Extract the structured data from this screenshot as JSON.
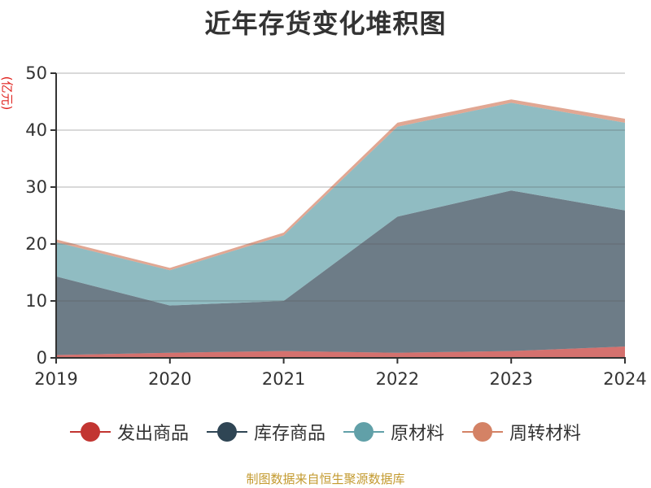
{
  "title": "近年存货变化堆积图",
  "y_unit": "(亿元)",
  "footer": "制图数据来自恒生聚源数据库",
  "colors": {
    "发出商品": "#c23531",
    "库存商品": "#2f4554",
    "原材料": "#61a0a8",
    "周转材料": "#d48265"
  },
  "legend": [
    {
      "label": "发出商品",
      "color": "#c23531"
    },
    {
      "label": "库存商品",
      "color": "#2f4554"
    },
    {
      "label": "原材料",
      "color": "#61a0a8"
    },
    {
      "label": "周转材料",
      "color": "#d48265"
    }
  ],
  "chart_data": {
    "type": "area",
    "stacked": true,
    "title": "近年存货变化堆积图",
    "xlabel": "",
    "ylabel": "(亿元)",
    "categories": [
      "2019",
      "2020",
      "2021",
      "2022",
      "2023",
      "2024"
    ],
    "ylim": [
      0,
      50
    ],
    "yticks": [
      0,
      10,
      20,
      30,
      40,
      50
    ],
    "grid": true,
    "legend_position": "bottom",
    "series": [
      {
        "name": "发出商品",
        "color": "#c23531",
        "values": [
          0.5,
          0.9,
          1.2,
          0.9,
          1.2,
          2.0
        ]
      },
      {
        "name": "库存商品",
        "color": "#2f4554",
        "values": [
          13.8,
          8.3,
          8.8,
          23.9,
          28.2,
          23.9
        ]
      },
      {
        "name": "原材料",
        "color": "#61a0a8",
        "values": [
          6.0,
          6.2,
          11.5,
          15.8,
          15.4,
          15.4
        ]
      },
      {
        "name": "周转材料",
        "color": "#d48265",
        "values": [
          0.5,
          0.4,
          0.5,
          0.7,
          0.6,
          0.7
        ]
      }
    ]
  }
}
